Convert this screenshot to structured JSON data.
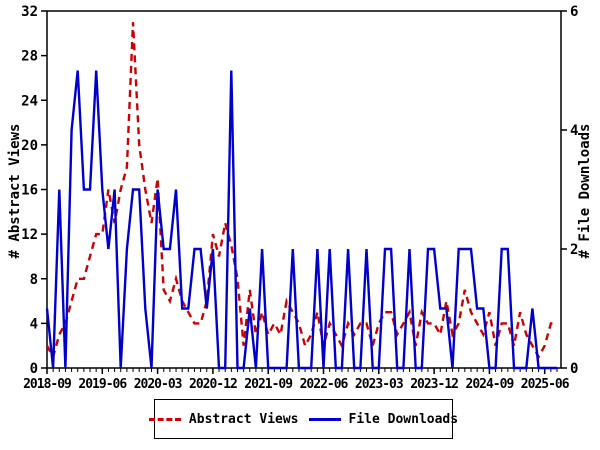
{
  "chart_data": {
    "type": "line",
    "title": "",
    "x_start": "2018-09",
    "x_end": "2025-08",
    "months_count": 84,
    "x_tick_labels": [
      "2018-09",
      "2019-06",
      "2020-03",
      "2020-12",
      "2021-09",
      "2022-06",
      "2023-03",
      "2023-12",
      "2024-09",
      "2025-06"
    ],
    "x_tick_month_indices": [
      0,
      9,
      18,
      27,
      36,
      45,
      54,
      63,
      72,
      81
    ],
    "left_axis": {
      "label": "# Abstract Views",
      "min": 0,
      "max": 32,
      "ticks": [
        0,
        4,
        8,
        12,
        16,
        20,
        24,
        28,
        32
      ]
    },
    "right_axis": {
      "label": "# File Downloads",
      "min": 0,
      "max": 6,
      "ticks": [
        0,
        2,
        4,
        6
      ]
    },
    "grid": false,
    "legend_position": "bottom",
    "series": [
      {
        "name": "Abstract Views",
        "axis": "left",
        "color": "#cc0000",
        "style": "dashed",
        "values": [
          2,
          1,
          3,
          4,
          6,
          8,
          8,
          10,
          12,
          12,
          16,
          13,
          16,
          18,
          31,
          20,
          16,
          13,
          17,
          7,
          6,
          8,
          6,
          5,
          4,
          4,
          6,
          12,
          10,
          13,
          11,
          8,
          2,
          7,
          3,
          5,
          3,
          4,
          3,
          6,
          5,
          4,
          2,
          3,
          5,
          2,
          4,
          3,
          2,
          4,
          3,
          4,
          4,
          2,
          4,
          5,
          5,
          3,
          4,
          5,
          2,
          5,
          4,
          4,
          3,
          6,
          3,
          4,
          7,
          5,
          4,
          3,
          5,
          2,
          4,
          4,
          2,
          5,
          3,
          2,
          1,
          2,
          4,
          4
        ]
      },
      {
        "name": "File Downloads",
        "axis": "right",
        "color": "#0000cc",
        "style": "solid",
        "values": [
          1,
          0,
          3,
          0,
          4,
          5,
          3,
          3,
          5,
          3,
          2,
          3,
          0,
          2,
          3,
          3,
          1,
          0,
          3,
          2,
          2,
          3,
          1,
          1,
          2,
          2,
          1,
          2,
          0,
          0,
          5,
          0,
          0,
          1,
          0,
          2,
          0,
          0,
          0,
          0,
          2,
          0,
          0,
          0,
          2,
          0,
          2,
          0,
          0,
          2,
          0,
          0,
          2,
          0,
          0,
          2,
          2,
          0,
          0,
          2,
          0,
          0,
          2,
          2,
          1,
          1,
          0,
          2,
          2,
          2,
          1,
          1,
          0,
          0,
          2,
          2,
          0,
          0,
          0,
          1,
          0,
          0,
          0,
          0
        ]
      }
    ]
  },
  "legend": {
    "abstract_views": "Abstract Views",
    "file_downloads": "File Downloads"
  },
  "colors": {
    "abstract_views": "#cc0000",
    "file_downloads": "#0000cc",
    "axis": "#000000",
    "background": "#ffffff"
  }
}
